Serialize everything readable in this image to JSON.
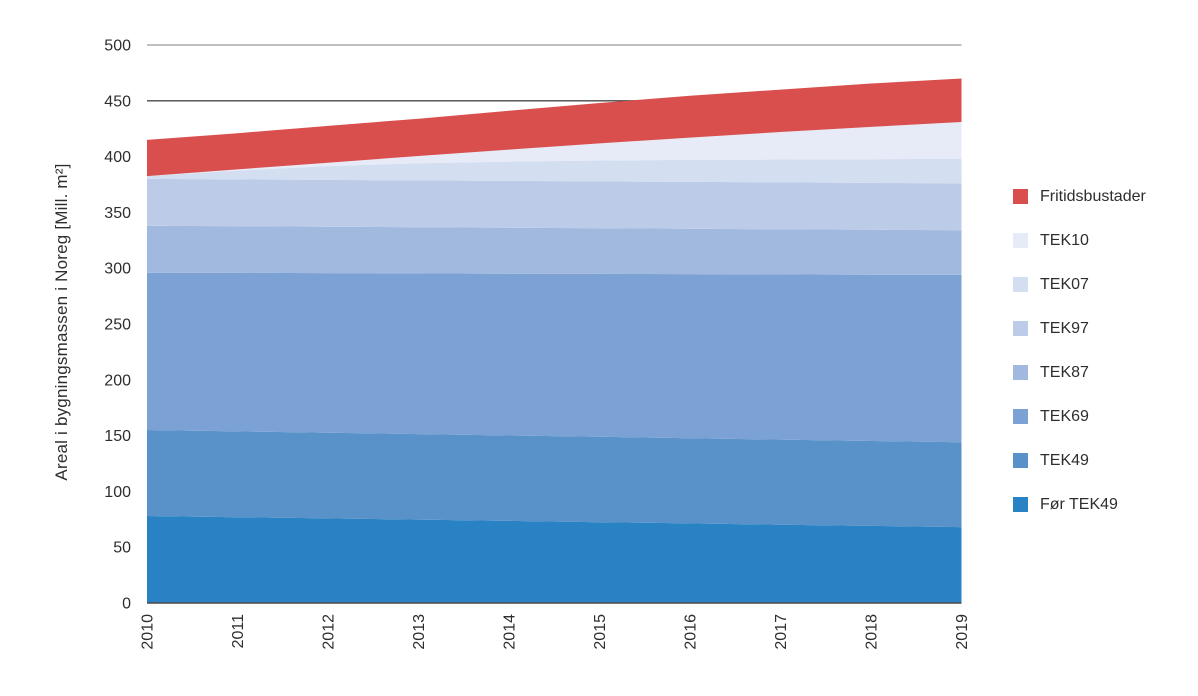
{
  "chart_data": {
    "type": "area",
    "stacked": true,
    "title": "",
    "xlabel": "",
    "ylabel": "Areal i bygningsmassen i Noreg [Mill. m²]",
    "ylim": [
      0,
      500
    ],
    "yticks": [
      0,
      50,
      100,
      150,
      200,
      250,
      300,
      350,
      400,
      450,
      500
    ],
    "x": [
      2010,
      2011,
      2012,
      2013,
      2014,
      2015,
      2016,
      2017,
      2018,
      2019
    ],
    "x_tick_rotation": -90,
    "grid": "partial",
    "gridlines": [
      {
        "value": 500,
        "color": "#9b9b9b",
        "width": 1.2
      },
      {
        "value": 450,
        "color": "#4a4a4a",
        "width": 1.4
      }
    ],
    "axis_color": "#4a4a4a",
    "text_color": "#2e2e2e",
    "legend_position": "right",
    "series": [
      {
        "name": "Før TEK49",
        "color": "#2982c4",
        "values": [
          78,
          76.9,
          75.8,
          74.7,
          73.6,
          72.4,
          71.3,
          70.2,
          69.1,
          68
        ]
      },
      {
        "name": "TEK49",
        "color": "#5991c9",
        "values": [
          77,
          76.9,
          76.8,
          76.6,
          76.5,
          76.5,
          76.4,
          76.2,
          76.1,
          76
        ]
      },
      {
        "name": "TEK69",
        "color": "#7ca1d4",
        "values": [
          141,
          142,
          143,
          144,
          145,
          146,
          147,
          148,
          149,
          150
        ]
      },
      {
        "name": "TEK87",
        "color": "#a1b8df",
        "values": [
          42,
          41.8,
          41.5,
          41.4,
          41.1,
          40.9,
          40.6,
          40.5,
          40.2,
          40
        ]
      },
      {
        "name": "TEK97",
        "color": "#bccbe8",
        "values": [
          42,
          42,
          42,
          42,
          42,
          42,
          42,
          42,
          42,
          42
        ]
      },
      {
        "name": "TEK07",
        "color": "#d4def1",
        "values": [
          2.5,
          7.9,
          12.4,
          15.3,
          17.3,
          18.7,
          19.7,
          20.5,
          21.3,
          22
        ]
      },
      {
        "name": "TEK10",
        "color": "#e7ebf7",
        "values": [
          0,
          1,
          3,
          6.5,
          10.8,
          15.3,
          20,
          24.6,
          28.9,
          33
        ]
      },
      {
        "name": "Fritidsbustader",
        "color": "#d84f4e",
        "values": [
          32.5,
          32.5,
          33,
          33.5,
          34.7,
          36.2,
          37.5,
          38,
          38.9,
          39
        ]
      }
    ],
    "legend_items": [
      "Fritidsbustader",
      "TEK10",
      "TEK07",
      "TEK97",
      "TEK87",
      "TEK69",
      "TEK49",
      "Før TEK49"
    ]
  }
}
